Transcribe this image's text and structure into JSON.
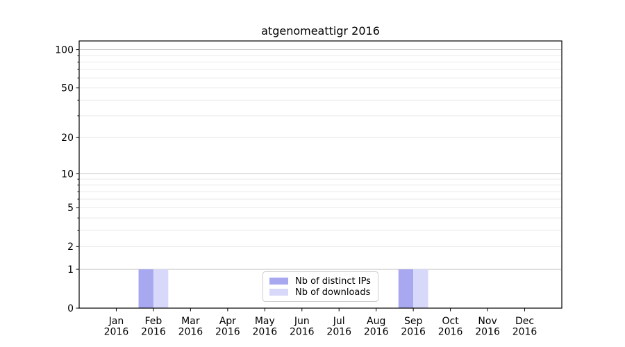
{
  "chart_data": {
    "type": "bar",
    "title": "atgenomeattigr 2016",
    "year_label": "2016",
    "categories": [
      "Jan",
      "Feb",
      "Mar",
      "Apr",
      "May",
      "Jun",
      "Jul",
      "Aug",
      "Sep",
      "Oct",
      "Nov",
      "Dec"
    ],
    "series": [
      {
        "name": "Nb of distinct IPs",
        "color": "#a8a8f0",
        "values": [
          0,
          1,
          0,
          0,
          0,
          0,
          0,
          0,
          1,
          0,
          0,
          0
        ]
      },
      {
        "name": "Nb of downloads",
        "color": "#d8d8fa",
        "values": [
          0,
          1,
          0,
          0,
          0,
          0,
          0,
          0,
          1,
          0,
          0,
          0
        ]
      }
    ],
    "y_axis": {
      "scale": "log1p",
      "labeled_ticks": [
        0,
        1,
        2,
        5,
        10,
        20,
        50,
        100
      ],
      "major_ticks": [
        1,
        10,
        100
      ],
      "minor_ticks": [
        2,
        3,
        4,
        5,
        6,
        7,
        8,
        9,
        20,
        30,
        40,
        50,
        60,
        70,
        80,
        90
      ],
      "range": [
        0,
        117
      ]
    },
    "xlabel": "",
    "ylabel": "",
    "grid": {
      "axis": "y",
      "which": "both"
    },
    "legend": {
      "position": "lower center"
    },
    "colors": {
      "grid_major": "#c6c6c6",
      "grid_minor": "#e9e9e9",
      "axis": "#000000",
      "text": "#000000",
      "legend_border": "#cccccc",
      "background": "#ffffff"
    }
  }
}
